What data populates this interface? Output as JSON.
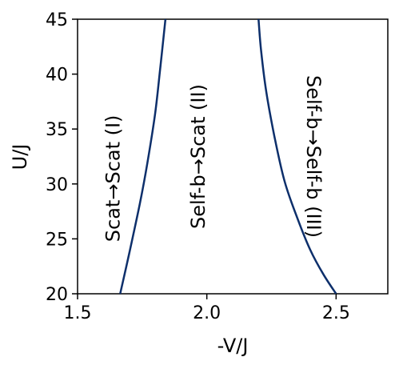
{
  "chart_data": {
    "type": "line",
    "xlabel": "-V/J",
    "ylabel": "U/J",
    "xlim": [
      1.5,
      2.7
    ],
    "ylim": [
      20,
      45
    ],
    "x_ticks": [
      "1.5",
      "2.0",
      "2.5"
    ],
    "y_ticks": [
      "20",
      "25",
      "30",
      "35",
      "40",
      "45"
    ],
    "grid": false,
    "legend": "none",
    "series": [
      {
        "color": "#0d2f6b",
        "points": [
          [
            1.665,
            20
          ],
          [
            1.7,
            23.7
          ],
          [
            1.74,
            28.1
          ],
          [
            1.77,
            31.9
          ],
          [
            1.8,
            36.4
          ],
          [
            1.82,
            40.6
          ],
          [
            1.84,
            45
          ]
        ]
      },
      {
        "color": "#0d2f6b",
        "points": [
          [
            2.2,
            45
          ],
          [
            2.21,
            42.1
          ],
          [
            2.23,
            38.4
          ],
          [
            2.26,
            34.5
          ],
          [
            2.3,
            30.3
          ],
          [
            2.35,
            26.9
          ],
          [
            2.4,
            24.0
          ],
          [
            2.45,
            21.8
          ],
          [
            2.5,
            20
          ]
        ]
      }
    ],
    "annotations": [
      {
        "text": "Scat→Scat (I)",
        "x": 1.64,
        "y": 30.5
      },
      {
        "text": "Self-b→Scat (II)",
        "x": 1.97,
        "y": 32.5
      },
      {
        "text": "Self-b→Self-b (III)",
        "x": 2.41,
        "y": 32.5
      }
    ]
  }
}
